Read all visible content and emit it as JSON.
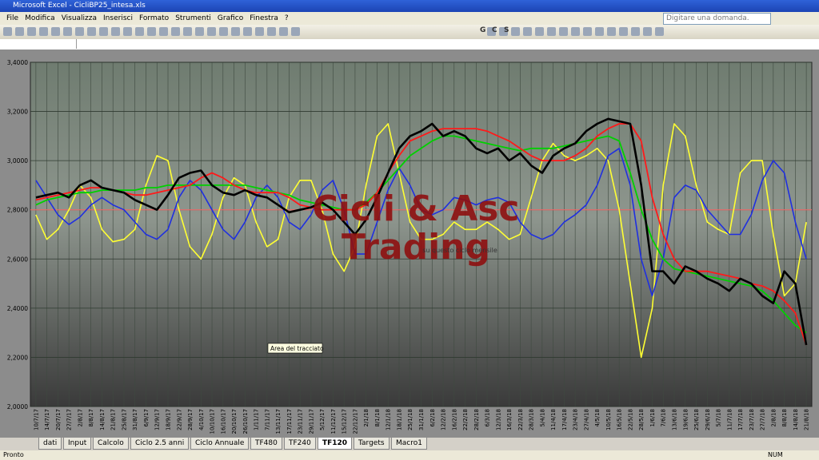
{
  "window": {
    "title": "Microsoft Excel - CicliBP25_intesa.xls",
    "menu": [
      "File",
      "Modifica",
      "Visualizza",
      "Inserisci",
      "Formato",
      "Strumenti",
      "Grafico",
      "Finestra",
      "?"
    ],
    "search_placeholder": "Digitare una domanda.",
    "toolbar_format": [
      "G",
      "C",
      "S"
    ],
    "sheet_tabs": [
      "dati",
      "Input",
      "Calcolo",
      "Ciclo 2.5 anni",
      "Ciclo Annuale",
      "TF480",
      "TF240",
      "TF120",
      "Targets",
      "Macro1"
    ],
    "active_tab": 7,
    "status": [
      "Pronto",
      "NUM"
    ]
  },
  "chart_data": {
    "type": "line",
    "categories": [
      "10/7/17",
      "14/7/17",
      "20/7/17",
      "27/7/17",
      "2/8/17",
      "8/8/17",
      "14/8/17",
      "21/8/17",
      "25/8/17",
      "31/8/17",
      "6/9/17",
      "12/9/17",
      "18/9/17",
      "22/9/17",
      "28/9/17",
      "4/10/17",
      "10/10/17",
      "16/10/17",
      "20/10/17",
      "26/10/17",
      "1/11/17",
      "7/11/17",
      "13/11/17",
      "17/11/17",
      "23/11/17",
      "29/11/17",
      "5/12/17",
      "11/12/17",
      "15/12/17",
      "22/12/17",
      "2/1/18",
      "8/1/18",
      "12/1/18",
      "18/1/18",
      "25/1/18",
      "31/1/18",
      "6/2/18",
      "12/2/18",
      "16/2/18",
      "22/2/18",
      "28/2/18",
      "6/3/18",
      "12/3/18",
      "16/3/18",
      "22/3/18",
      "28/3/18",
      "5/4/18",
      "11/4/18",
      "17/4/18",
      "23/4/18",
      "27/4/18",
      "4/5/18",
      "10/5/18",
      "16/5/18",
      "22/5/18",
      "28/5/18",
      "1/6/18",
      "7/6/18",
      "13/6/18",
      "19/6/18",
      "25/6/18",
      "29/6/18",
      "5/7/18",
      "11/7/18",
      "17/7/18",
      "23/7/18",
      "27/7/18",
      "2/8/18",
      "8/8/18",
      "14/8/18",
      "21/8/18"
    ],
    "series": [
      {
        "color": "#ffff33",
        "width": 1.6,
        "values": [
          2.78,
          2.68,
          2.72,
          2.8,
          2.9,
          2.85,
          2.72,
          2.67,
          2.68,
          2.72,
          2.9,
          3.02,
          3.0,
          2.8,
          2.65,
          2.6,
          2.7,
          2.85,
          2.93,
          2.9,
          2.75,
          2.65,
          2.68,
          2.85,
          2.92,
          2.92,
          2.8,
          2.62,
          2.55,
          2.65,
          2.9,
          3.1,
          3.15,
          2.95,
          2.75,
          2.68,
          2.68,
          2.7,
          2.75,
          2.72,
          2.72,
          2.75,
          2.72,
          2.68,
          2.7,
          2.85,
          3.0,
          3.07,
          3.02,
          3.0,
          3.02,
          3.05,
          3.0,
          2.8,
          2.5,
          2.2,
          2.4,
          2.9,
          3.15,
          3.1,
          2.9,
          2.75,
          2.72,
          2.7,
          2.95,
          3.0,
          3.0,
          2.7,
          2.45,
          2.5,
          2.75
        ]
      },
      {
        "color": "#1f2fe0",
        "width": 1.6,
        "values": [
          2.92,
          2.85,
          2.78,
          2.74,
          2.77,
          2.82,
          2.85,
          2.82,
          2.8,
          2.75,
          2.7,
          2.68,
          2.72,
          2.85,
          2.92,
          2.88,
          2.8,
          2.72,
          2.68,
          2.75,
          2.85,
          2.9,
          2.85,
          2.75,
          2.72,
          2.78,
          2.88,
          2.92,
          2.8,
          2.62,
          2.62,
          2.75,
          2.88,
          2.97,
          2.9,
          2.8,
          2.78,
          2.8,
          2.85,
          2.84,
          2.82,
          2.84,
          2.85,
          2.83,
          2.75,
          2.7,
          2.68,
          2.7,
          2.75,
          2.78,
          2.82,
          2.9,
          3.02,
          3.05,
          2.9,
          2.6,
          2.45,
          2.6,
          2.85,
          2.9,
          2.88,
          2.8,
          2.75,
          2.7,
          2.7,
          2.78,
          2.92,
          3.0,
          2.95,
          2.75,
          2.6
        ]
      },
      {
        "color": "#00d000",
        "width": 1.8,
        "values": [
          2.82,
          2.84,
          2.85,
          2.86,
          2.87,
          2.87,
          2.88,
          2.88,
          2.88,
          2.88,
          2.89,
          2.89,
          2.9,
          2.9,
          2.9,
          2.9,
          2.9,
          2.9,
          2.9,
          2.9,
          2.89,
          2.88,
          2.87,
          2.86,
          2.84,
          2.83,
          2.82,
          2.81,
          2.8,
          2.8,
          2.83,
          2.87,
          2.92,
          2.97,
          3.02,
          3.05,
          3.08,
          3.1,
          3.1,
          3.09,
          3.08,
          3.07,
          3.06,
          3.05,
          3.04,
          3.05,
          3.05,
          3.05,
          3.06,
          3.07,
          3.08,
          3.09,
          3.1,
          3.08,
          2.95,
          2.8,
          2.68,
          2.6,
          2.56,
          2.55,
          2.54,
          2.53,
          2.52,
          2.51,
          2.5,
          2.49,
          2.47,
          2.43,
          2.38,
          2.33,
          2.3
        ]
      },
      {
        "color": "#ff1a1a",
        "width": 1.8,
        "values": [
          2.84,
          2.85,
          2.86,
          2.87,
          2.88,
          2.89,
          2.89,
          2.88,
          2.87,
          2.86,
          2.86,
          2.87,
          2.88,
          2.89,
          2.9,
          2.93,
          2.95,
          2.93,
          2.9,
          2.88,
          2.87,
          2.87,
          2.87,
          2.85,
          2.82,
          2.81,
          2.8,
          2.8,
          2.8,
          2.8,
          2.82,
          2.87,
          2.95,
          3.02,
          3.08,
          3.1,
          3.12,
          3.13,
          3.13,
          3.13,
          3.13,
          3.12,
          3.1,
          3.08,
          3.05,
          3.02,
          3.0,
          3.0,
          3.0,
          3.02,
          3.05,
          3.1,
          3.13,
          3.15,
          3.15,
          3.08,
          2.85,
          2.7,
          2.6,
          2.55,
          2.55,
          2.55,
          2.54,
          2.53,
          2.52,
          2.5,
          2.49,
          2.47,
          2.43,
          2.38,
          2.25
        ]
      },
      {
        "color": "#000000",
        "width": 2.6,
        "values": [
          2.85,
          2.86,
          2.87,
          2.85,
          2.9,
          2.92,
          2.89,
          2.88,
          2.87,
          2.84,
          2.82,
          2.8,
          2.86,
          2.93,
          2.95,
          2.96,
          2.9,
          2.87,
          2.86,
          2.88,
          2.86,
          2.85,
          2.82,
          2.79,
          2.8,
          2.81,
          2.83,
          2.8,
          2.75,
          2.7,
          2.76,
          2.85,
          2.95,
          3.05,
          3.1,
          3.12,
          3.15,
          3.1,
          3.12,
          3.1,
          3.05,
          3.03,
          3.05,
          3.0,
          3.03,
          2.98,
          2.95,
          3.02,
          3.05,
          3.07,
          3.12,
          3.15,
          3.17,
          3.16,
          3.15,
          2.9,
          2.55,
          2.55,
          2.5,
          2.57,
          2.55,
          2.52,
          2.5,
          2.47,
          2.52,
          2.5,
          2.45,
          2.42,
          2.55,
          2.5,
          2.25
        ]
      }
    ],
    "reference_line": {
      "value": 2.8,
      "color": "#ff6b6b"
    },
    "ylim": [
      2.0,
      3.4
    ],
    "yticks": [
      {
        "value": 2.0,
        "label": "2,0000"
      },
      {
        "value": 2.2,
        "label": "2,2000"
      },
      {
        "value": 2.4,
        "label": "2,4000"
      },
      {
        "value": 2.6,
        "label": "2,6000"
      },
      {
        "value": 2.8,
        "label": "2,8000"
      },
      {
        "value": 3.0,
        "label": "3,0000"
      },
      {
        "value": 3.2,
        "label": "3,2000"
      },
      {
        "value": 3.4,
        "label": "3,4000"
      }
    ],
    "grid": true,
    "annotations": [
      "Cicli & Asc",
      "Trading",
      "su questo ciclo mensile",
      "Area del tracciato"
    ]
  }
}
